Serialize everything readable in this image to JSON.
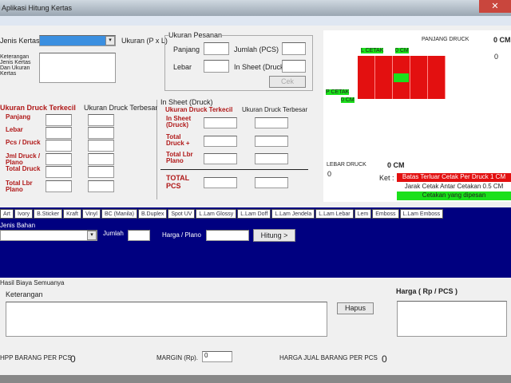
{
  "window": {
    "title": "Aplikasi Hitung Kertas",
    "close": "✕"
  },
  "top": {
    "jenis_kertas_label": "Jenis Kertas",
    "ukuran_label": "Ukuran (P x L)",
    "keterangan_label": "Keterangan Jenis Kertas Dan Ukuran Kertas"
  },
  "ukuran_pesanan": {
    "title": "Ukuran Pesanan",
    "panjang": "Panjang",
    "lebar": "Lebar",
    "jumlah": "Jumlah (PCS)",
    "in_sheet": "In Sheet (Druck)",
    "cek": "Cek"
  },
  "left_grid": {
    "col1": "Ukuran Druck Terkecil",
    "col2": "Ukuran Druck Terbesar",
    "rows": [
      "Panjang",
      "Lebar",
      "Pcs / Druck",
      "Jml Druck / Plano",
      "Total Druck",
      "Total Lbr Plano"
    ]
  },
  "in_sheet_grp": {
    "title": "In Sheet (Druck)",
    "col1": "Ukuran Druck Terkecil",
    "col2": "Ukuran Druck Terbesar",
    "rows": [
      "In Sheet (Druck)",
      "Total Druck +",
      "Total Lbr Plano"
    ],
    "total": "TOTAL PCS"
  },
  "preview": {
    "panjang_label": "PANJANG DRUCK",
    "panjang_value": "0 CM",
    "panjang_num": "0",
    "lebar_cetak": "L CETAK",
    "lebar_val": "0 CM",
    "p_cetak": "P CETAK",
    "p_val": "0 CM",
    "lebar_druck_label": "LEBAR DRUCK",
    "lebar_druck_value": "0 CM",
    "lebar_num": "0",
    "ket_label": "Ket :",
    "batas": "Batas Terluar Cetak Per Druck 1 CM",
    "jarak": "Jarak Cetak Antar Cetakan 0.5 CM",
    "cetakan": "Cetakan yang dipesan",
    "colors": {
      "sheet": "#e31010",
      "highlight": "#1be01b"
    }
  },
  "tabs": [
    "Art",
    "Ivory",
    "B.Sticker",
    "Kraft",
    "Vinyl",
    "BC (Manila)",
    "B.Duplex",
    "Spot UV",
    "L.Lam Glossy",
    "L.Lam Doff",
    "L.Lam Jendela",
    "L.Lam Lebar",
    "Lem",
    "Emboss",
    "L.Lam Emboss"
  ],
  "bahan": {
    "label": "Jenis Bahan",
    "jumlah": "Jumlah",
    "harga": "Harga / Plano",
    "hitung": "Hitung >"
  },
  "bottom": {
    "group": "Hasil Biaya Semuanya",
    "keterangan": "Keterangan",
    "hapus": "Hapus",
    "harga_label": "Harga ( Rp / PCS )",
    "hpp_label": "HPP BARANG PER PCS",
    "hpp_value": "0",
    "margin_label": "MARGIN (Rp).",
    "margin_value": "0",
    "jual_label": "HARGA JUAL BARANG PER PCS",
    "jual_value": "0"
  }
}
